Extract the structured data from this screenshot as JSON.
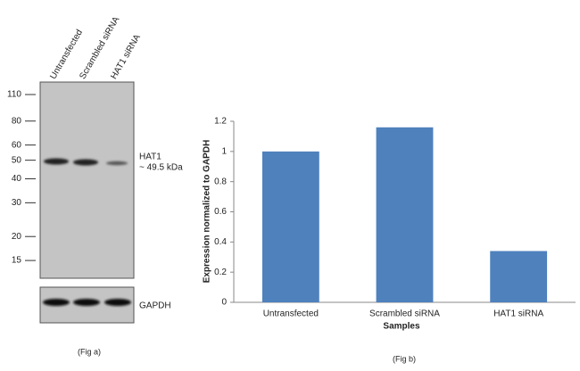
{
  "blot": {
    "lanes": [
      "Untransfected",
      "Scrambled siRNA",
      "HAT1 siRNA"
    ],
    "markers": [
      110,
      80,
      60,
      50,
      40,
      30,
      20,
      15
    ],
    "target_label": "HAT1",
    "target_size": "~ 49.5 kDa",
    "control_label": "GAPDH",
    "caption": "(Fig a)"
  },
  "chart_data": {
    "type": "bar",
    "categories": [
      "Untransfected",
      "Scrambled siRNA",
      "HAT1 siRNA"
    ],
    "values": [
      1.0,
      1.16,
      0.34
    ],
    "color": "#4f81bd",
    "ylim": [
      0,
      1.2
    ],
    "yticks": [
      0,
      0.2,
      0.4,
      0.6,
      0.8,
      1,
      1.2
    ],
    "ylabel": "Expression  normalized to GAPDH",
    "xlabel": "Samples",
    "caption": "(Fig b)"
  }
}
